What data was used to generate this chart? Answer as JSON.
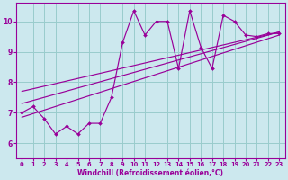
{
  "xlabel": "Windchill (Refroidissement éolien,°C)",
  "bg_color": "#cce8ee",
  "line_color": "#990099",
  "grid_color": "#99cccc",
  "xlim": [
    -0.5,
    23.5
  ],
  "ylim": [
    5.5,
    10.6
  ],
  "yticks": [
    6,
    7,
    8,
    9,
    10
  ],
  "xticks": [
    0,
    1,
    2,
    3,
    4,
    5,
    6,
    7,
    8,
    9,
    10,
    11,
    12,
    13,
    14,
    15,
    16,
    17,
    18,
    19,
    20,
    21,
    22,
    23
  ],
  "data_x": [
    0,
    1,
    2,
    3,
    4,
    5,
    6,
    7,
    8,
    9,
    10,
    11,
    12,
    13,
    14,
    15,
    16,
    17,
    18,
    19,
    20,
    21,
    22,
    23
  ],
  "data_y": [
    7.0,
    7.2,
    6.8,
    6.3,
    6.55,
    6.3,
    6.65,
    6.65,
    7.5,
    9.3,
    10.35,
    9.55,
    10.0,
    10.0,
    8.45,
    10.35,
    9.15,
    8.45,
    10.2,
    10.0,
    9.55,
    9.5,
    9.6,
    9.6
  ],
  "line1_x": [
    0,
    23
  ],
  "line1_y": [
    6.85,
    9.55
  ],
  "line2_x": [
    0,
    23
  ],
  "line2_y": [
    7.3,
    9.65
  ],
  "line3_x": [
    0,
    23
  ],
  "line3_y": [
    7.7,
    9.65
  ],
  "xlabel_fontsize": 5.5,
  "tick_fontsize_x": 4.8,
  "tick_fontsize_y": 5.5
}
